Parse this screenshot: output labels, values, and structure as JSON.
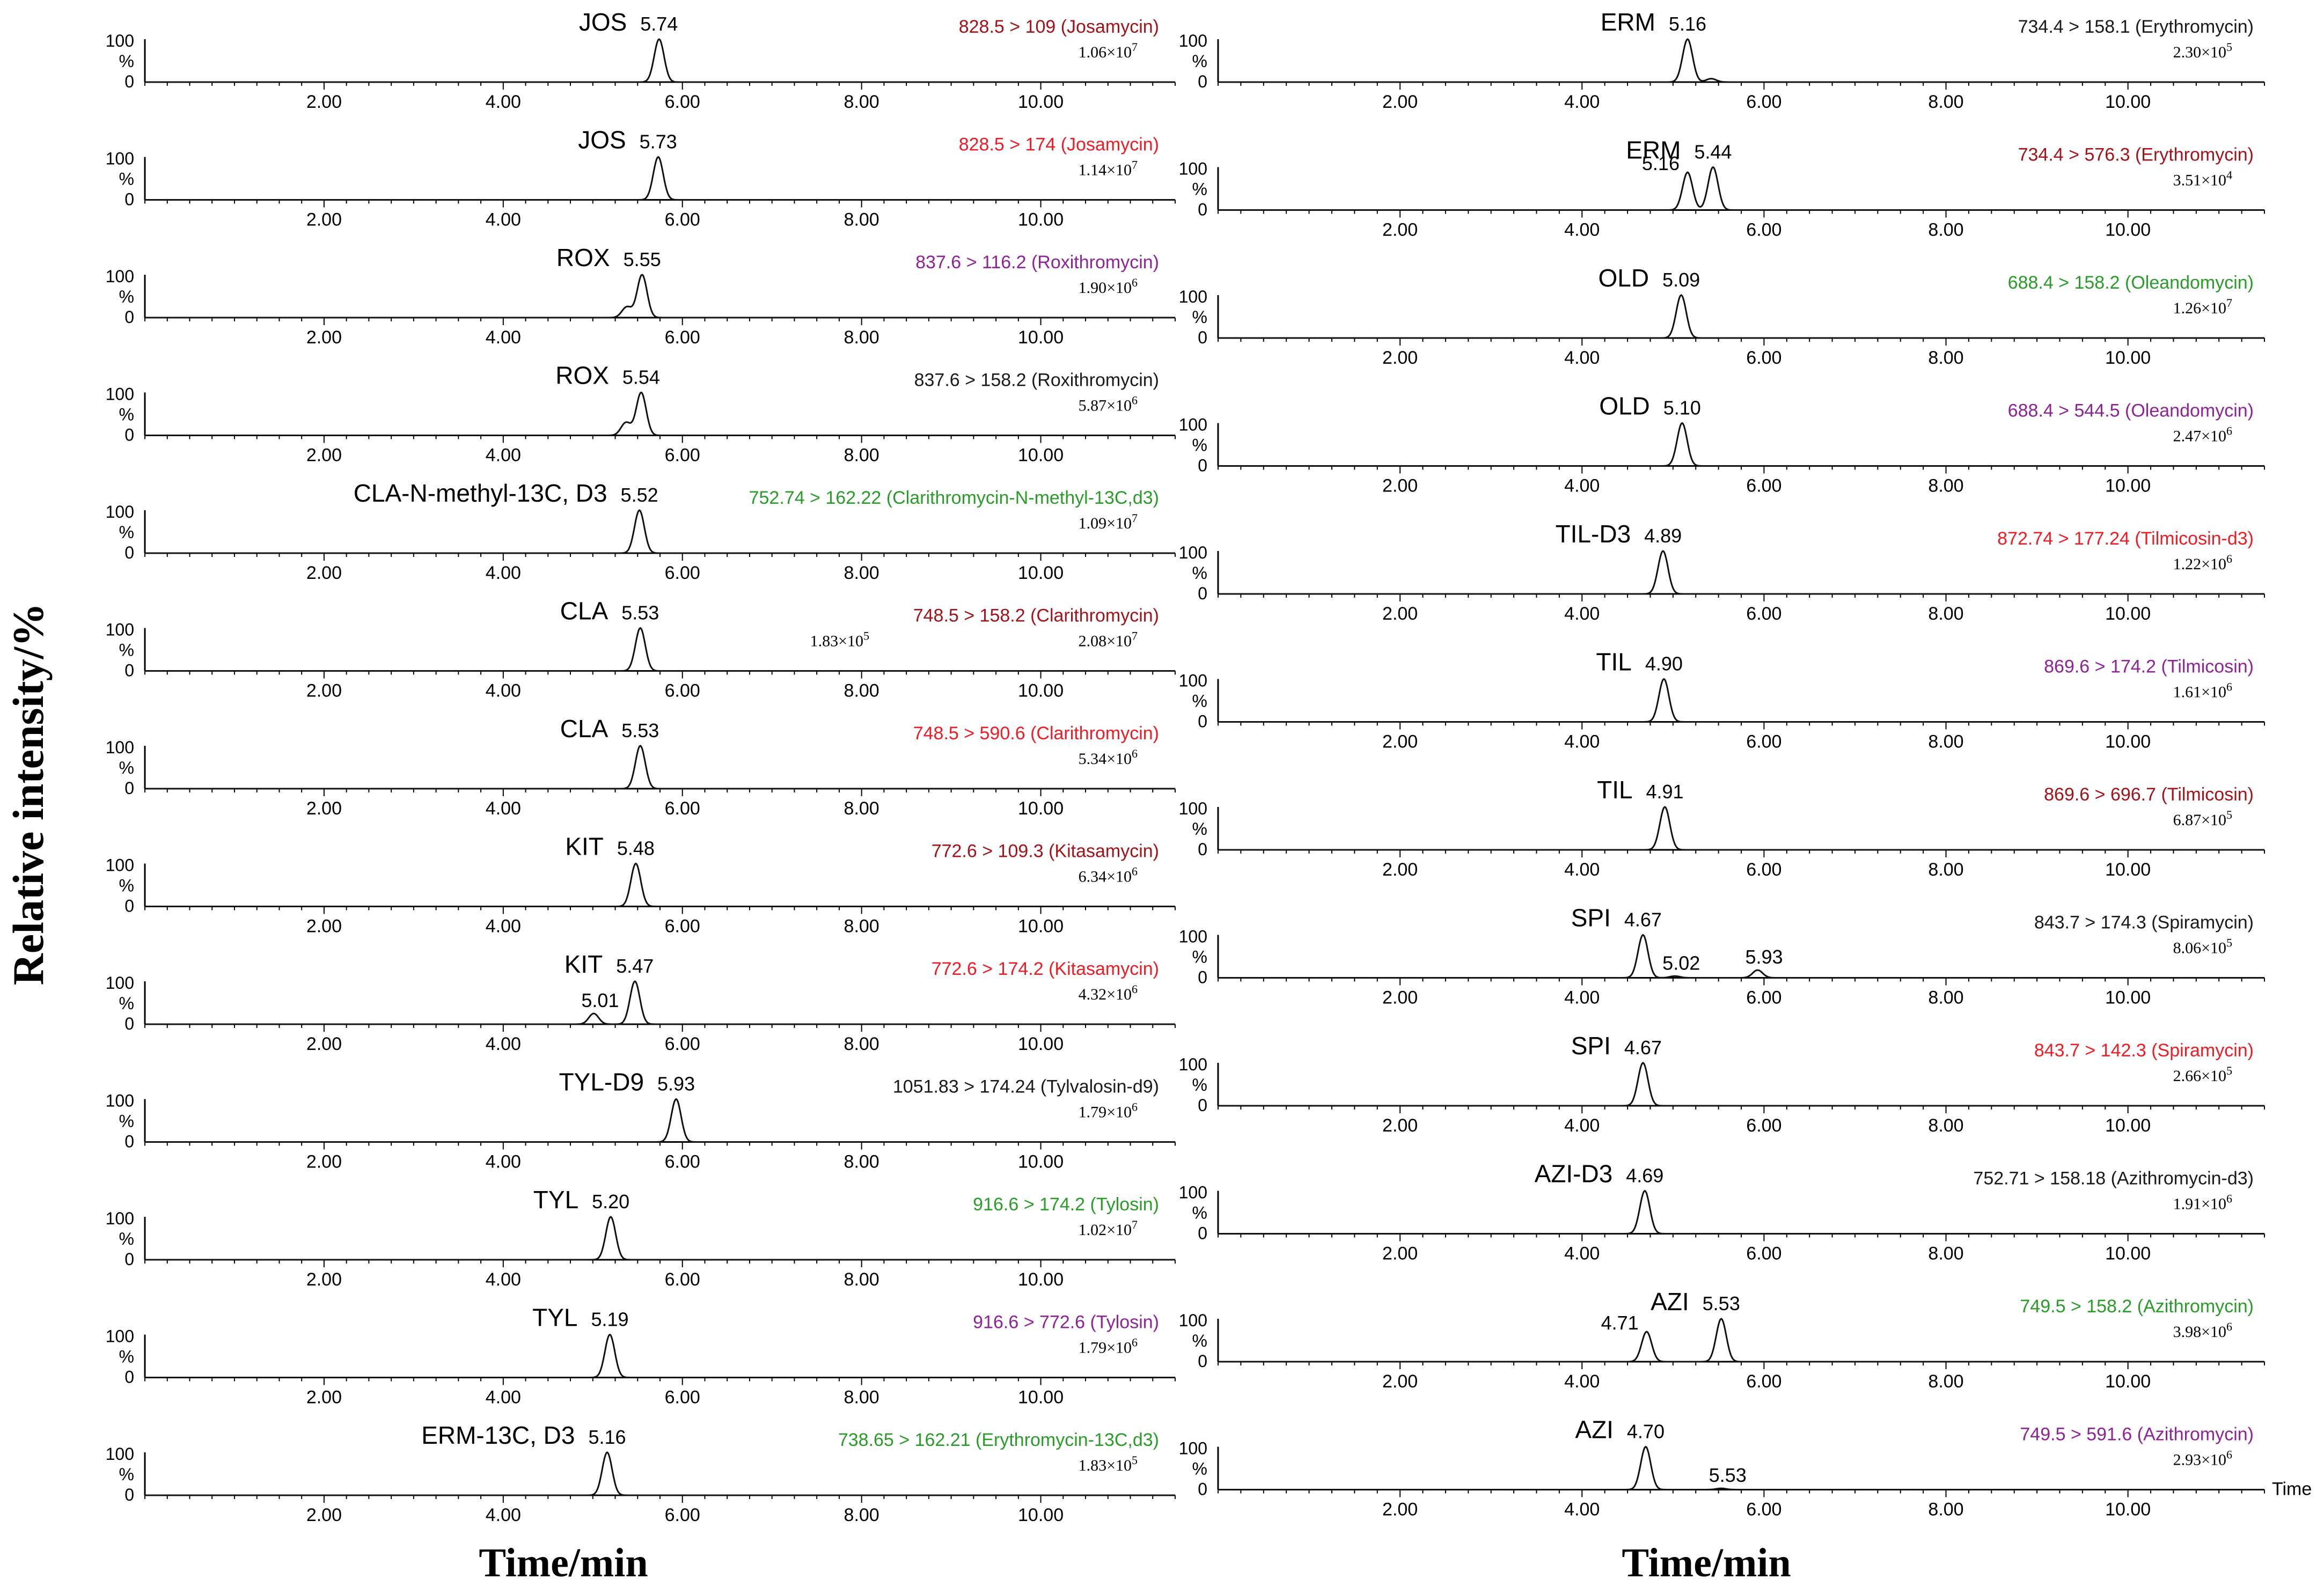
{
  "ylabel": "Relative intensity/%",
  "xlabel": "Time/min",
  "time_label": "Time",
  "y_ticks": [
    "100",
    "%",
    "0"
  ],
  "x_ticks": [
    "2.00",
    "4.00",
    "6.00",
    "8.00",
    "10.00"
  ],
  "colors": {
    "black": "#1a1a1a",
    "darkred": "#a3141a",
    "red": "#ee1c24",
    "purple": "#8f2496",
    "green": "#2a9c2a"
  },
  "chart_data": [
    {
      "type": "line",
      "column": "left",
      "xlim": [
        0,
        11.5
      ],
      "xticks": [
        2,
        4,
        6,
        8,
        10
      ],
      "ylim": [
        0,
        100
      ],
      "panels": [
        {
          "compound": "JOS",
          "transition": "828.5 > 109 (Josamycin)",
          "color": "darkred",
          "intensity": "1.06×10",
          "exponent": "7",
          "peaks": [
            {
              "rt": 5.74,
              "height": 100,
              "label": "5.74"
            }
          ]
        },
        {
          "compound": "JOS",
          "transition": "828.5 > 174 (Josamycin)",
          "color": "red",
          "intensity": "1.14×10",
          "exponent": "7",
          "peaks": [
            {
              "rt": 5.73,
              "height": 100,
              "label": "5.73"
            }
          ]
        },
        {
          "compound": "ROX",
          "transition": "837.6 > 116.2 (Roxithromycin)",
          "color": "purple",
          "intensity": "1.90×10",
          "exponent": "6",
          "peaks": [
            {
              "rt": 5.55,
              "height": 100,
              "label": "5.55"
            },
            {
              "rt": 5.38,
              "height": 25,
              "label": ""
            }
          ]
        },
        {
          "compound": "ROX",
          "transition": "837.6 > 158.2 (Roxithromycin)",
          "color": "black",
          "intensity": "5.87×10",
          "exponent": "6",
          "peaks": [
            {
              "rt": 5.54,
              "height": 100,
              "label": "5.54"
            },
            {
              "rt": 5.37,
              "height": 30,
              "label": ""
            }
          ]
        },
        {
          "compound": "CLA-N-methyl-13C, D3",
          "transition": "752.74 > 162.22 (Clarithromycin-N-methyl-13C,d3)",
          "color": "green",
          "intensity": "1.09×10",
          "exponent": "7",
          "peaks": [
            {
              "rt": 5.52,
              "height": 100,
              "label": "5.52"
            }
          ]
        },
        {
          "compound": "CLA",
          "transition": "748.5 > 158.2 (Clarithromycin)",
          "color": "darkred",
          "intensity": "2.08×10",
          "exponent": "7",
          "intensity2": "1.83×10",
          "exponent2": "5",
          "peaks": [
            {
              "rt": 5.53,
              "height": 100,
              "label": "5.53"
            }
          ]
        },
        {
          "compound": "CLA",
          "transition": "748.5 > 590.6 (Clarithromycin)",
          "color": "red",
          "intensity": "5.34×10",
          "exponent": "6",
          "peaks": [
            {
              "rt": 5.53,
              "height": 100,
              "label": "5.53"
            }
          ]
        },
        {
          "compound": "KIT",
          "transition": "772.6 > 109.3 (Kitasamycin)",
          "color": "darkred",
          "intensity": "6.34×10",
          "exponent": "6",
          "peaks": [
            {
              "rt": 5.48,
              "height": 100,
              "label": "5.48"
            }
          ]
        },
        {
          "compound": "KIT",
          "transition": "772.6 > 174.2 (Kitasamycin)",
          "color": "red",
          "intensity": "4.32×10",
          "exponent": "6",
          "peaks": [
            {
              "rt": 5.47,
              "height": 100,
              "label": "5.47"
            },
            {
              "rt": 5.01,
              "height": 25,
              "label": "5.01"
            }
          ]
        },
        {
          "compound": "TYL-D9",
          "transition": "1051.83 > 174.24 (Tylvalosin-d9)",
          "color": "black",
          "intensity": "1.79×10",
          "exponent": "6",
          "peaks": [
            {
              "rt": 5.93,
              "height": 100,
              "label": "5.93"
            }
          ]
        },
        {
          "compound": "TYL",
          "transition": "916.6 > 174.2 (Tylosin)",
          "color": "green",
          "intensity": "1.02×10",
          "exponent": "7",
          "peaks": [
            {
              "rt": 5.2,
              "height": 100,
              "label": "5.20"
            }
          ]
        },
        {
          "compound": "TYL",
          "transition": "916.6 > 772.6 (Tylosin)",
          "color": "purple",
          "intensity": "1.79×10",
          "exponent": "6",
          "peaks": [
            {
              "rt": 5.19,
              "height": 100,
              "label": "5.19"
            }
          ]
        },
        {
          "compound": "ERM-13C, D3",
          "transition": "738.65 > 162.21 (Erythromycin-13C,d3)",
          "color": "green",
          "intensity": "1.83×10",
          "exponent": "5",
          "peaks": [
            {
              "rt": 5.16,
              "height": 100,
              "label": "5.16"
            }
          ]
        }
      ]
    },
    {
      "type": "line",
      "column": "right",
      "xlim": [
        0,
        11.5
      ],
      "xticks": [
        2,
        4,
        6,
        8,
        10
      ],
      "ylim": [
        0,
        100
      ],
      "panels": [
        {
          "compound": "ERM",
          "transition": "734.4 > 158.1 (Erythromycin)",
          "color": "black",
          "intensity": "2.30×10",
          "exponent": "5",
          "peaks": [
            {
              "rt": 5.16,
              "height": 100,
              "label": "5.16"
            },
            {
              "rt": 5.42,
              "height": 8,
              "label": ""
            }
          ]
        },
        {
          "compound": "ERM",
          "transition": "734.4 > 576.3 (Erythromycin)",
          "color": "darkred",
          "intensity": "3.51×10",
          "exponent": "4",
          "peaks": [
            {
              "rt": 5.44,
              "height": 100,
              "label": "5.44"
            },
            {
              "rt": 5.16,
              "height": 88,
              "label": "5.16"
            }
          ]
        },
        {
          "compound": "OLD",
          "transition": "688.4 > 158.2 (Oleandomycin)",
          "color": "green",
          "intensity": "1.26×10",
          "exponent": "7",
          "peaks": [
            {
              "rt": 5.09,
              "height": 100,
              "label": "5.09"
            }
          ]
        },
        {
          "compound": "OLD",
          "transition": "688.4 > 544.5 (Oleandomycin)",
          "color": "purple",
          "intensity": "2.47×10",
          "exponent": "6",
          "peaks": [
            {
              "rt": 5.1,
              "height": 100,
              "label": "5.10"
            }
          ]
        },
        {
          "compound": "TIL-D3",
          "transition": "872.74 > 177.24 (Tilmicosin-d3)",
          "color": "red",
          "intensity": "1.22×10",
          "exponent": "6",
          "peaks": [
            {
              "rt": 4.89,
              "height": 100,
              "label": "4.89"
            }
          ]
        },
        {
          "compound": "TIL",
          "transition": "869.6 > 174.2 (Tilmicosin)",
          "color": "purple",
          "intensity": "1.61×10",
          "exponent": "6",
          "peaks": [
            {
              "rt": 4.9,
              "height": 100,
              "label": "4.90"
            }
          ]
        },
        {
          "compound": "TIL",
          "transition": "869.6 > 696.7 (Tilmicosin)",
          "color": "darkred",
          "intensity": "6.87×10",
          "exponent": "5",
          "peaks": [
            {
              "rt": 4.91,
              "height": 100,
              "label": "4.91"
            }
          ]
        },
        {
          "compound": "SPI",
          "transition": "843.7 > 174.3 (Spiramycin)",
          "color": "black",
          "intensity": "8.06×10",
          "exponent": "5",
          "peaks": [
            {
              "rt": 4.67,
              "height": 100,
              "label": "4.67"
            },
            {
              "rt": 5.02,
              "height": 4,
              "label": "5.02"
            },
            {
              "rt": 5.93,
              "height": 18,
              "label": "5.93"
            }
          ]
        },
        {
          "compound": "SPI",
          "transition": "843.7 > 142.3 (Spiramycin)",
          "color": "red",
          "intensity": "2.66×10",
          "exponent": "5",
          "peaks": [
            {
              "rt": 4.67,
              "height": 100,
              "label": "4.67"
            }
          ]
        },
        {
          "compound": "AZI-D3",
          "transition": "752.71 > 158.18 (Azithromycin-d3)",
          "color": "black",
          "intensity": "1.91×10",
          "exponent": "6",
          "peaks": [
            {
              "rt": 4.69,
              "height": 100,
              "label": "4.69"
            }
          ]
        },
        {
          "compound": "AZI",
          "transition": "749.5 > 158.2 (Azithromycin)",
          "color": "green",
          "intensity": "3.98×10",
          "exponent": "6",
          "peaks": [
            {
              "rt": 5.53,
              "height": 100,
              "label": "5.53"
            },
            {
              "rt": 4.71,
              "height": 70,
              "label": "4.71"
            }
          ]
        },
        {
          "compound": "AZI",
          "transition": "749.5 > 591.6 (Azithromycin)",
          "color": "purple",
          "intensity": "2.93×10",
          "exponent": "6",
          "peaks": [
            {
              "rt": 4.7,
              "height": 100,
              "label": "4.70"
            },
            {
              "rt": 5.53,
              "height": 3,
              "label": "5.53"
            }
          ]
        }
      ]
    }
  ]
}
